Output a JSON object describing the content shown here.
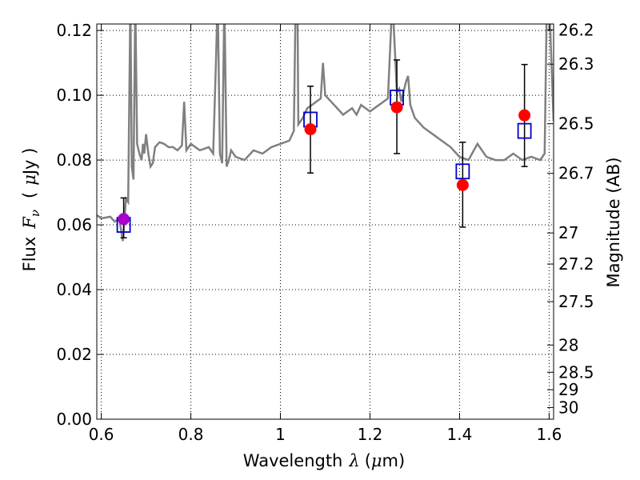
{
  "chart_data": {
    "type": "scatter",
    "title": "",
    "xlabel": {
      "prefix": "Wavelength",
      "symbol": "λ",
      "unit_open": "(",
      "unit_symbol": "μ",
      "unit_rest": "m)"
    },
    "ylabel": {
      "prefix": "Flux",
      "symbol": "F",
      "subscript": "ν",
      "unit_open": "(",
      "unit_symbol": "μ",
      "unit_rest": "Jy )"
    },
    "y2label": "Magnitude (AB)",
    "xlim": [
      0.59,
      1.61
    ],
    "ylim": [
      0.0,
      0.122
    ],
    "x_ticks": [
      0.6,
      0.8,
      1.0,
      1.2,
      1.4,
      1.6
    ],
    "x_tick_labels": [
      "0.6",
      "0.8",
      "1",
      "1.2",
      "1.4",
      "1.6"
    ],
    "y_ticks": [
      0.0,
      0.02,
      0.04,
      0.06,
      0.08,
      0.1,
      0.12
    ],
    "y_tick_labels": [
      "0.00",
      "0.02",
      "0.04",
      "0.06",
      "0.08",
      "0.10",
      "0.12"
    ],
    "y2_ticks": [
      {
        "label": "26.2",
        "flux": 0.1202
      },
      {
        "label": "26.3",
        "flux": 0.1096
      },
      {
        "label": "26.5",
        "flux": 0.0912
      },
      {
        "label": "26.7",
        "flux": 0.0759
      },
      {
        "label": "27",
        "flux": 0.0575
      },
      {
        "label": "27.2",
        "flux": 0.0479
      },
      {
        "label": "27.5",
        "flux": 0.0363
      },
      {
        "label": "28",
        "flux": 0.0229
      },
      {
        "label": "28.5",
        "flux": 0.0145
      },
      {
        "label": "29",
        "flux": 0.0091
      },
      {
        "label": "30",
        "flux": 0.0036
      }
    ],
    "grid": true,
    "colors": {
      "model": "#808080",
      "observed": "#ff0000",
      "observed_first": "#aa00cc",
      "model_photometry": "#0000cc",
      "errorbar": "#000000"
    },
    "observed_points": [
      {
        "x": 0.65,
        "y": 0.0618,
        "yerr_low": 0.0058,
        "yerr_high": 0.0065
      },
      {
        "x": 1.067,
        "y": 0.0895,
        "yerr_low": 0.0135,
        "yerr_high": 0.0133
      },
      {
        "x": 1.26,
        "y": 0.0963,
        "yerr_low": 0.0143,
        "yerr_high": 0.0146
      },
      {
        "x": 1.407,
        "y": 0.0723,
        "yerr_low": 0.013,
        "yerr_high": 0.0132
      },
      {
        "x": 1.545,
        "y": 0.0938,
        "yerr_low": 0.0158,
        "yerr_high": 0.0157
      }
    ],
    "model_photometry": [
      {
        "x": 0.65,
        "y": 0.06
      },
      {
        "x": 1.067,
        "y": 0.0925
      },
      {
        "x": 1.26,
        "y": 0.0993
      },
      {
        "x": 1.407,
        "y": 0.0765
      },
      {
        "x": 1.545,
        "y": 0.089
      }
    ],
    "model_spectrum": {
      "x": [
        0.59,
        0.6,
        0.62,
        0.63,
        0.64,
        0.648,
        0.652,
        0.655,
        0.66,
        0.665,
        0.668,
        0.672,
        0.676,
        0.68,
        0.685,
        0.69,
        0.693,
        0.696,
        0.7,
        0.705,
        0.71,
        0.715,
        0.72,
        0.73,
        0.74,
        0.75,
        0.76,
        0.77,
        0.78,
        0.785,
        0.79,
        0.8,
        0.82,
        0.84,
        0.85,
        0.856,
        0.86,
        0.865,
        0.87,
        0.875,
        0.88,
        0.885,
        0.89,
        0.9,
        0.92,
        0.94,
        0.96,
        0.98,
        1.0,
        1.02,
        1.03,
        1.034,
        1.038,
        1.04,
        1.05,
        1.06,
        1.08,
        1.09,
        1.095,
        1.1,
        1.12,
        1.14,
        1.15,
        1.16,
        1.17,
        1.18,
        1.19,
        1.2,
        1.22,
        1.24,
        1.25,
        1.26,
        1.265,
        1.27,
        1.28,
        1.285,
        1.29,
        1.3,
        1.32,
        1.34,
        1.36,
        1.38,
        1.4,
        1.42,
        1.44,
        1.46,
        1.48,
        1.5,
        1.52,
        1.54,
        1.56,
        1.58,
        1.59,
        1.595,
        1.6,
        1.61
      ],
      "y": [
        0.063,
        0.062,
        0.0625,
        0.061,
        0.062,
        0.055,
        0.062,
        0.068,
        0.067,
        0.13,
        0.078,
        0.074,
        0.13,
        0.085,
        0.082,
        0.08,
        0.085,
        0.082,
        0.088,
        0.082,
        0.078,
        0.079,
        0.084,
        0.0855,
        0.085,
        0.084,
        0.084,
        0.083,
        0.0845,
        0.098,
        0.083,
        0.085,
        0.083,
        0.084,
        0.082,
        0.11,
        0.13,
        0.082,
        0.079,
        0.13,
        0.078,
        0.08,
        0.083,
        0.081,
        0.08,
        0.083,
        0.082,
        0.084,
        0.085,
        0.086,
        0.089,
        0.13,
        0.13,
        0.091,
        0.093,
        0.096,
        0.098,
        0.099,
        0.11,
        0.1,
        0.097,
        0.094,
        0.095,
        0.096,
        0.094,
        0.097,
        0.096,
        0.095,
        0.097,
        0.099,
        0.13,
        0.101,
        0.102,
        0.098,
        0.104,
        0.106,
        0.097,
        0.093,
        0.09,
        0.088,
        0.086,
        0.084,
        0.081,
        0.08,
        0.085,
        0.081,
        0.08,
        0.08,
        0.082,
        0.08,
        0.081,
        0.08,
        0.082,
        0.13,
        0.13,
        0.092
      ]
    }
  }
}
